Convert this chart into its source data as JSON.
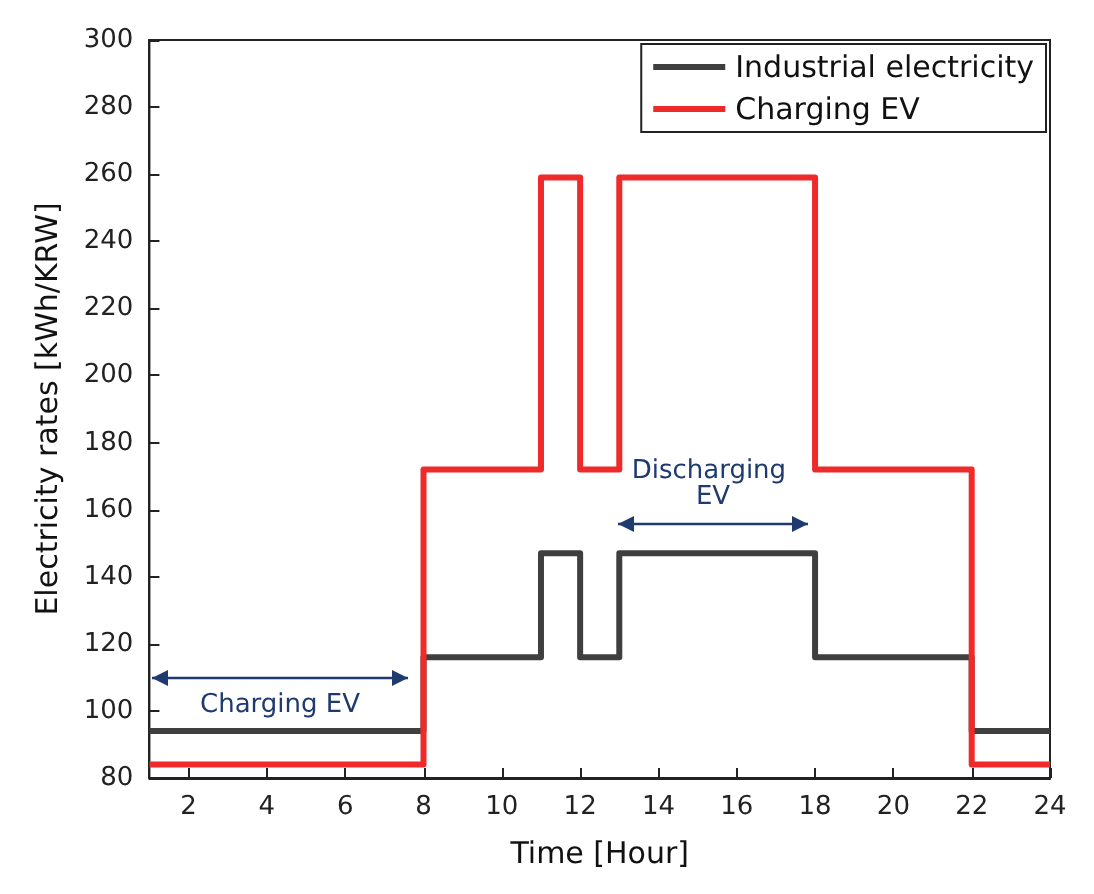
{
  "chart_data": {
    "type": "step",
    "xlabel": "Time [Hour]",
    "ylabel": "Electricity rates [kWh/KRW]",
    "x": [
      1,
      8,
      11,
      12,
      13,
      18,
      22,
      24
    ],
    "series": [
      {
        "name": "Industrial electricity",
        "color": "#3f3f3f",
        "values": [
          94,
          116,
          147,
          116,
          147,
          116,
          94,
          94
        ]
      },
      {
        "name": "Charging EV",
        "color": "#ee2a2a",
        "values": [
          84,
          172,
          259,
          172,
          259,
          172,
          84,
          84
        ]
      }
    ],
    "xlim": [
      1,
      24
    ],
    "xticks": [
      2,
      4,
      6,
      8,
      10,
      12,
      14,
      16,
      18,
      20,
      22,
      24
    ],
    "ylim": [
      80,
      300
    ],
    "yticks": [
      80,
      100,
      120,
      140,
      160,
      180,
      200,
      220,
      240,
      260,
      280,
      300
    ],
    "annotations": [
      "Charging EV",
      "Discharging EV"
    ],
    "legend": "top right",
    "grid": false,
    "marker": "none",
    "line_style": "solid"
  }
}
